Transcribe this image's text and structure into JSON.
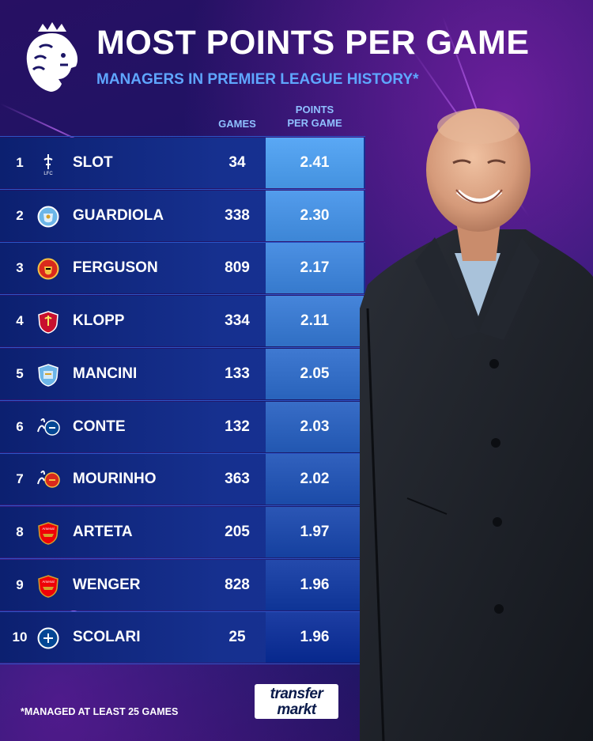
{
  "header": {
    "title": "MOST POINTS PER GAME",
    "subtitle": "MANAGERS IN PREMIER LEAGUE HISTORY*"
  },
  "columns": {
    "games": "GAMES",
    "ppg_line1": "POINTS",
    "ppg_line2": "PER GAME"
  },
  "colors": {
    "accent": "#5fa6ff",
    "ppg_top": "#5aa8f5",
    "ppg_bottom": "#1d3ea3"
  },
  "rows": [
    {
      "rank": "1",
      "name": "SLOT",
      "games": "34",
      "ppg": "2.41",
      "crest": "liverpool-lfc-crest-icon"
    },
    {
      "rank": "2",
      "name": "GUARDIOLA",
      "games": "338",
      "ppg": "2.30",
      "crest": "man-city-crest-icon"
    },
    {
      "rank": "3",
      "name": "FERGUSON",
      "games": "809",
      "ppg": "2.17",
      "crest": "man-united-crest-icon"
    },
    {
      "rank": "4",
      "name": "KLOPP",
      "games": "334",
      "ppg": "2.11",
      "crest": "liverpool-crest-icon"
    },
    {
      "rank": "5",
      "name": "MANCINI",
      "games": "133",
      "ppg": "2.05",
      "crest": "man-city-old-crest-icon"
    },
    {
      "rank": "6",
      "name": "CONTE",
      "games": "132",
      "ppg": "2.03",
      "crest": "tottenham-chelsea-crest-icon"
    },
    {
      "rank": "7",
      "name": "MOURINHO",
      "games": "363",
      "ppg": "2.02",
      "crest": "tottenham-man-united-crest-icon"
    },
    {
      "rank": "8",
      "name": "ARTETA",
      "games": "205",
      "ppg": "1.97",
      "crest": "arsenal-crest-icon"
    },
    {
      "rank": "9",
      "name": "WENGER",
      "games": "828",
      "ppg": "1.96",
      "crest": "arsenal-crest-icon"
    },
    {
      "rank": "10",
      "name": "SCOLARI",
      "games": "25",
      "ppg": "1.96",
      "crest": "chelsea-crest-icon"
    }
  ],
  "footnote": "*MANAGED AT LEAST 25 GAMES",
  "brand": {
    "line1": "transfer",
    "line2": "markt"
  }
}
